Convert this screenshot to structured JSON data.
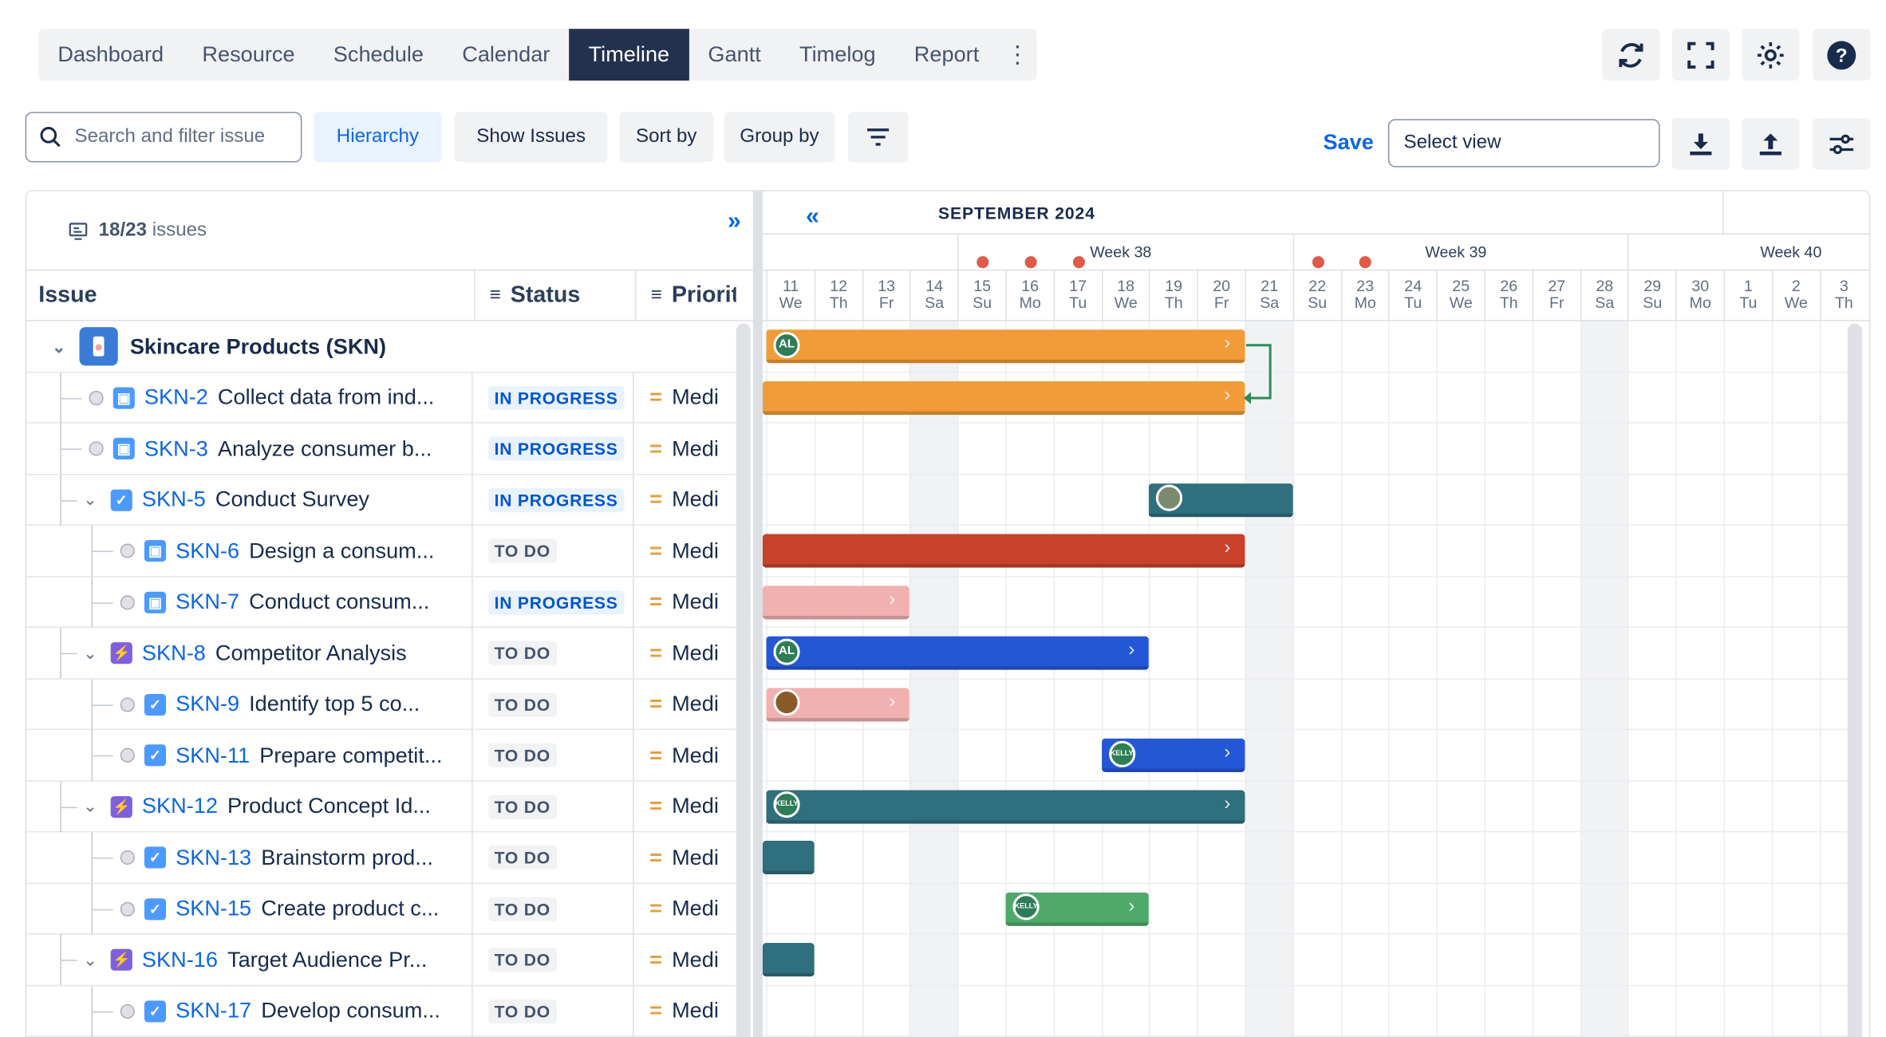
{
  "nav": {
    "tabs": [
      "Dashboard",
      "Resource",
      "Schedule",
      "Calendar",
      "Timeline",
      "Gantt",
      "Timelog",
      "Report"
    ],
    "active": "Timeline"
  },
  "toolbar": {
    "search_placeholder": "Search and filter issue",
    "hierarchy": "Hierarchy",
    "show_issues": "Show Issues",
    "sort_by": "Sort by",
    "group_by": "Group by",
    "save": "Save",
    "select_view": "Select view"
  },
  "left": {
    "count": "18/23",
    "count_suffix": "issues",
    "col_issue": "Issue",
    "col_status": "Status",
    "col_priority": "Priority"
  },
  "project": {
    "name": "Skincare Products  (SKN)"
  },
  "rows": [
    {
      "key": "SKN-2",
      "title": "Collect data from ind...",
      "status": "IN PROGRESS",
      "priority": "Medi"
    },
    {
      "key": "SKN-3",
      "title": "Analyze consumer b...",
      "status": "IN PROGRESS",
      "priority": "Medi"
    },
    {
      "key": "SKN-5",
      "title": "Conduct Survey",
      "status": "IN PROGRESS",
      "priority": "Medi"
    },
    {
      "key": "SKN-6",
      "title": "Design a consum...",
      "status": "TO DO",
      "priority": "Medi"
    },
    {
      "key": "SKN-7",
      "title": "Conduct consum...",
      "status": "IN PROGRESS",
      "priority": "Medi"
    },
    {
      "key": "SKN-8",
      "title": "Competitor Analysis",
      "status": "TO DO",
      "priority": "Medi"
    },
    {
      "key": "SKN-9",
      "title": "Identify top 5 co...",
      "status": "TO DO",
      "priority": "Medi"
    },
    {
      "key": "SKN-11",
      "title": "Prepare competit...",
      "status": "TO DO",
      "priority": "Medi"
    },
    {
      "key": "SKN-12",
      "title": "Product Concept Id...",
      "status": "TO DO",
      "priority": "Medi"
    },
    {
      "key": "SKN-13",
      "title": "Brainstorm prod...",
      "status": "TO DO",
      "priority": "Medi"
    },
    {
      "key": "SKN-15",
      "title": "Create product c...",
      "status": "TO DO",
      "priority": "Medi"
    },
    {
      "key": "SKN-16",
      "title": "Target Audience Pr...",
      "status": "TO DO",
      "priority": "Medi"
    },
    {
      "key": "SKN-17",
      "title": "Develop consum...",
      "status": "TO DO",
      "priority": "Medi"
    }
  ],
  "timeline": {
    "month": "SEPTEMBER 2024",
    "weeks": [
      "Week 38",
      "Week 39",
      "Week 40"
    ],
    "days": [
      [
        "11",
        "We"
      ],
      [
        "12",
        "Th"
      ],
      [
        "13",
        "Fr"
      ],
      [
        "14",
        "Sa"
      ],
      [
        "15",
        "Su"
      ],
      [
        "16",
        "Mo"
      ],
      [
        "17",
        "Tu"
      ],
      [
        "18",
        "We"
      ],
      [
        "19",
        "Th"
      ],
      [
        "20",
        "Fr"
      ],
      [
        "21",
        "Sa"
      ],
      [
        "22",
        "Su"
      ],
      [
        "23",
        "Mo"
      ],
      [
        "24",
        "Tu"
      ],
      [
        "25",
        "We"
      ],
      [
        "26",
        "Th"
      ],
      [
        "27",
        "Fr"
      ],
      [
        "28",
        "Sa"
      ],
      [
        "29",
        "Su"
      ],
      [
        "30",
        "Mo"
      ],
      [
        "1",
        "Tu"
      ],
      [
        "2",
        "We"
      ],
      [
        "3",
        "Th"
      ]
    ],
    "holidays": [
      "15",
      "16",
      "17",
      "22",
      "23"
    ],
    "avatars": {
      "al": "AL",
      "kelly": "KELLY"
    }
  },
  "colors": {
    "orange": "#f19c38",
    "teal": "#2f6f7e",
    "red": "#c9412a",
    "pink": "#f0b1b0",
    "blue": "#2457d6",
    "green": "#4faa6a"
  }
}
